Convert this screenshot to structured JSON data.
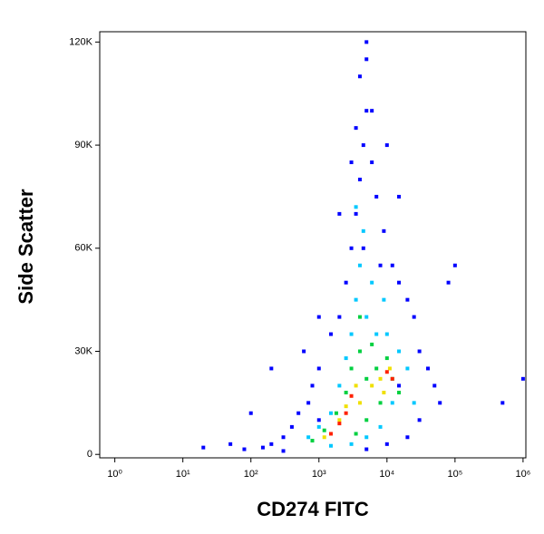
{
  "chart_data": {
    "type": "scatter",
    "x_label": "CD274 FITC",
    "y_label": "Side Scatter",
    "xscale": "log",
    "xlim": [
      0.6,
      1100000
    ],
    "ylim": [
      -1000,
      123000
    ],
    "xticks": [
      {
        "value": 1,
        "label": "10⁰"
      },
      {
        "value": 10,
        "label": "10¹"
      },
      {
        "value": 100,
        "label": "10²"
      },
      {
        "value": 1000,
        "label": "10³"
      },
      {
        "value": 10000,
        "label": "10⁴"
      },
      {
        "value": 100000,
        "label": "10⁵"
      },
      {
        "value": 1000000,
        "label": "10⁶"
      }
    ],
    "yticks": [
      0,
      {
        "value": 30000,
        "label": "30K"
      },
      {
        "value": 60000,
        "label": "60K"
      },
      {
        "value": 90000,
        "label": "90K"
      },
      {
        "value": 120000,
        "label": "120K"
      }
    ],
    "series": [
      {
        "color": "#0000ff",
        "x": [
          20,
          50,
          80,
          150,
          200,
          300,
          300,
          400,
          500,
          700,
          800,
          1000,
          1500,
          2000,
          2500,
          3000,
          3500,
          4000,
          4500,
          5000,
          4000,
          5000,
          3500,
          6000,
          7000,
          9000,
          12000,
          15000,
          20000,
          25000,
          30000,
          40000,
          50000,
          30000,
          20000,
          10000,
          5000,
          60000,
          100000,
          80000,
          500000,
          1000000,
          600,
          1000,
          200,
          100,
          2000,
          3000,
          6000,
          5000,
          10000,
          15000,
          4500,
          8000,
          1000,
          15000
        ],
        "values": [
          2000,
          3000,
          1500,
          2000,
          3000,
          1000,
          5000,
          8000,
          12000,
          15000,
          20000,
          25000,
          35000,
          40000,
          50000,
          60000,
          70000,
          80000,
          90000,
          100000,
          110000,
          115000,
          95000,
          85000,
          75000,
          65000,
          55000,
          50000,
          45000,
          40000,
          30000,
          25000,
          20000,
          10000,
          5000,
          3000,
          1500,
          15000,
          55000,
          50000,
          15000,
          22000,
          30000,
          40000,
          25000,
          12000,
          70000,
          85000,
          100000,
          120000,
          90000,
          75000,
          60000,
          55000,
          10000,
          20000
        ]
      },
      {
        "color": "#00c8ff",
        "x": [
          700,
          1000,
          1500,
          2000,
          2500,
          3000,
          3500,
          4000,
          4500,
          3500,
          5000,
          7000,
          10000,
          15000,
          20000,
          12000,
          8000,
          5000,
          3000,
          1500,
          25000,
          6000,
          9000
        ],
        "values": [
          5000,
          8000,
          12000,
          20000,
          28000,
          35000,
          45000,
          55000,
          65000,
          72000,
          40000,
          35000,
          35000,
          30000,
          25000,
          15000,
          8000,
          5000,
          3000,
          2500,
          15000,
          50000,
          45000
        ]
      },
      {
        "color": "#00d040",
        "x": [
          800,
          1200,
          1800,
          2500,
          3000,
          4000,
          5000,
          7000,
          10000,
          12000,
          8000,
          5000,
          3500,
          4000,
          6000,
          15000
        ],
        "values": [
          4000,
          7000,
          12000,
          18000,
          25000,
          30000,
          22000,
          25000,
          28000,
          22000,
          15000,
          10000,
          6000,
          40000,
          32000,
          18000
        ]
      },
      {
        "color": "#f0e000",
        "x": [
          1200,
          2000,
          2500,
          3500,
          6000,
          8000,
          11000,
          4000,
          9000
        ],
        "values": [
          5000,
          10000,
          14000,
          20000,
          20000,
          22000,
          25000,
          15000,
          18000
        ]
      },
      {
        "color": "#ff2000",
        "x": [
          1500,
          2500,
          3000,
          10000,
          12000,
          2000
        ],
        "values": [
          6000,
          12000,
          17000,
          24000,
          22000,
          9000
        ]
      }
    ]
  }
}
